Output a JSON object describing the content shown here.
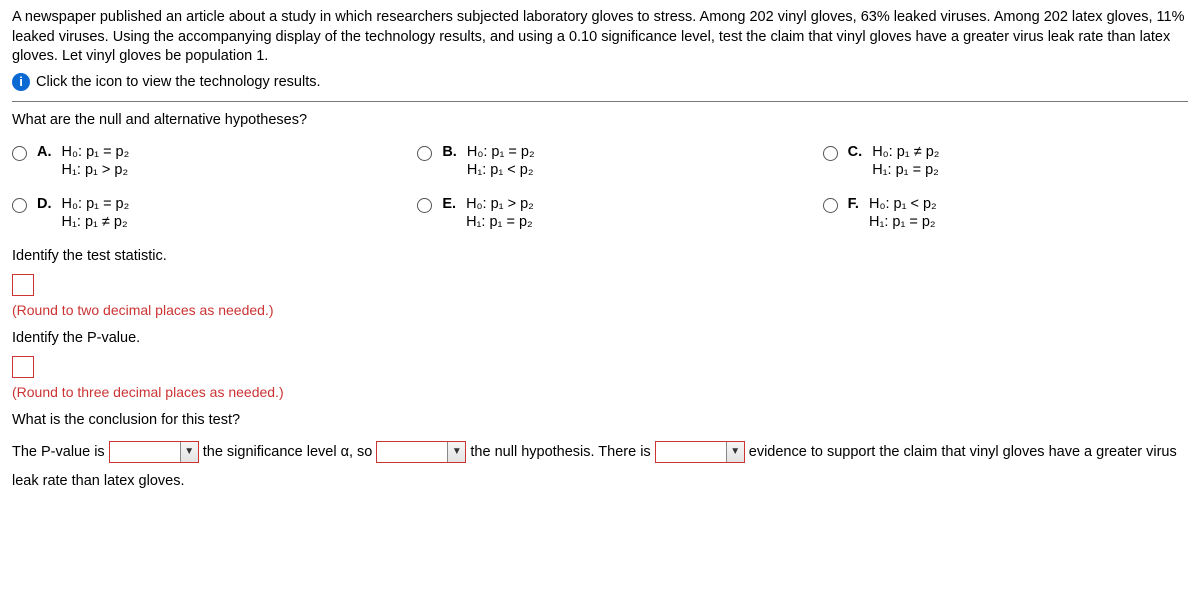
{
  "problem": {
    "line1": "A newspaper published an article about a study in which researchers subjected laboratory gloves to stress. Among 202 vinyl gloves, 63% leaked viruses. Among 202 latex gloves, 11% leaked viruses. Using the accompanying display of the technology results, and using a 0.10 significance level, test the claim that vinyl gloves have a greater virus leak rate than latex gloves. Let vinyl gloves be population 1.",
    "info_link": "Click the icon to view the technology results."
  },
  "q1": "What are the null and alternative hypotheses?",
  "options": {
    "A": {
      "h0": "H₀: p₁ = p₂",
      "h1": "H₁: p₁ > p₂"
    },
    "B": {
      "h0": "H₀: p₁ = p₂",
      "h1": "H₁: p₁ < p₂"
    },
    "C": {
      "h0": "H₀: p₁ ≠ p₂",
      "h1": "H₁: p₁ = p₂"
    },
    "D": {
      "h0": "H₀: p₁ = p₂",
      "h1": "H₁: p₁ ≠ p₂"
    },
    "E": {
      "h0": "H₀: p₁ > p₂",
      "h1": "H₁: p₁ = p₂"
    },
    "F": {
      "h0": "H₀: p₁ < p₂",
      "h1": "H₁: p₁ = p₂"
    }
  },
  "labels": {
    "A": "A.",
    "B": "B.",
    "C": "C.",
    "D": "D.",
    "E": "E.",
    "F": "F."
  },
  "ts_label": "Identify the test statistic.",
  "ts_hint": "(Round to two decimal places as needed.)",
  "pv_label": "Identify the P-value.",
  "pv_hint": "(Round to three decimal places as needed.)",
  "concl_q": "What is the conclusion for this test?",
  "concl": {
    "t1": "The P-value is",
    "t2": "the significance level α, so",
    "t3": "the null hypothesis. There is",
    "t4": "evidence to support the claim that vinyl gloves have a greater virus leak rate than latex gloves."
  },
  "icons": {
    "info_glyph": "i",
    "arrow": "▼"
  }
}
